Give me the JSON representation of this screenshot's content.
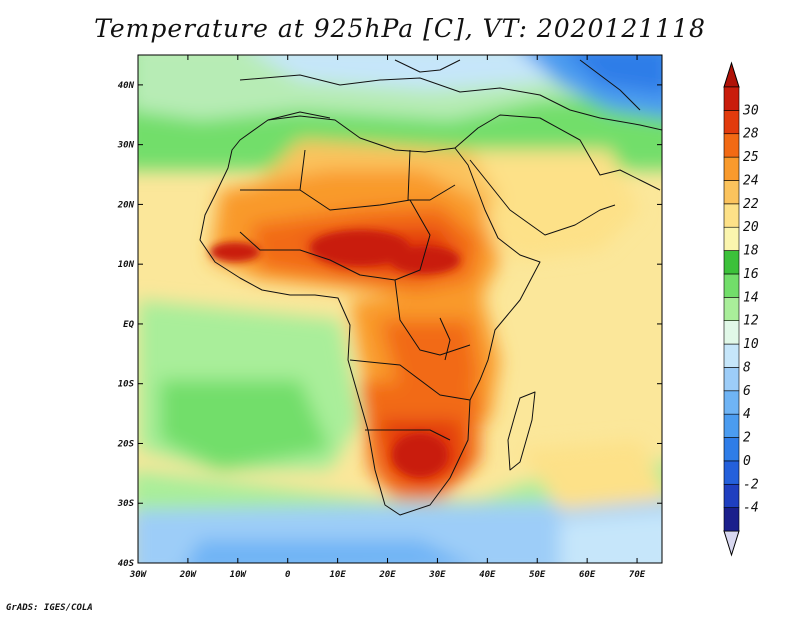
{
  "title": "Temperature at 925hPa [C], VT: 2020121118",
  "credit": "GrADS: IGES/COLA",
  "map": {
    "projection": "latlon",
    "lon_range": [
      -30,
      75
    ],
    "lat_range": [
      -40,
      45
    ],
    "lon_ticks": [
      {
        "value": -30,
        "label": "30W"
      },
      {
        "value": -20,
        "label": "20W"
      },
      {
        "value": -10,
        "label": "10W"
      },
      {
        "value": 0,
        "label": "0"
      },
      {
        "value": 10,
        "label": "10E"
      },
      {
        "value": 20,
        "label": "20E"
      },
      {
        "value": 30,
        "label": "30E"
      },
      {
        "value": 40,
        "label": "40E"
      },
      {
        "value": 50,
        "label": "50E"
      },
      {
        "value": 60,
        "label": "60E"
      },
      {
        "value": 70,
        "label": "70E"
      }
    ],
    "lat_ticks": [
      {
        "value": 40,
        "label": "40N"
      },
      {
        "value": 30,
        "label": "30N"
      },
      {
        "value": 20,
        "label": "20N"
      },
      {
        "value": 10,
        "label": "10N"
      },
      {
        "value": 0,
        "label": "EQ"
      },
      {
        "value": -10,
        "label": "10S"
      },
      {
        "value": -20,
        "label": "20S"
      },
      {
        "value": -30,
        "label": "30S"
      },
      {
        "value": -40,
        "label": "40S"
      }
    ]
  },
  "colorbar": {
    "levels": [
      "-4",
      "-2",
      "0",
      "2",
      "4",
      "6",
      "8",
      "10",
      "12",
      "14",
      "16",
      "18",
      "20",
      "22",
      "24",
      "25",
      "28",
      "30"
    ],
    "colors": [
      "#1b1f8c",
      "#1f3fc0",
      "#2460db",
      "#2f7de8",
      "#4b9cf0",
      "#6fb4f5",
      "#9dcdf8",
      "#c6e6fa",
      "#e1f8e8",
      "#a9ee9a",
      "#72de6a",
      "#3cc13a",
      "#fbf5ae",
      "#fde188",
      "#fbc35d",
      "#f99a2c",
      "#f26a14",
      "#e23b0d",
      "#c91d0c"
    ],
    "under_color": "#d8d8f0",
    "over_color": "#b01208"
  }
}
